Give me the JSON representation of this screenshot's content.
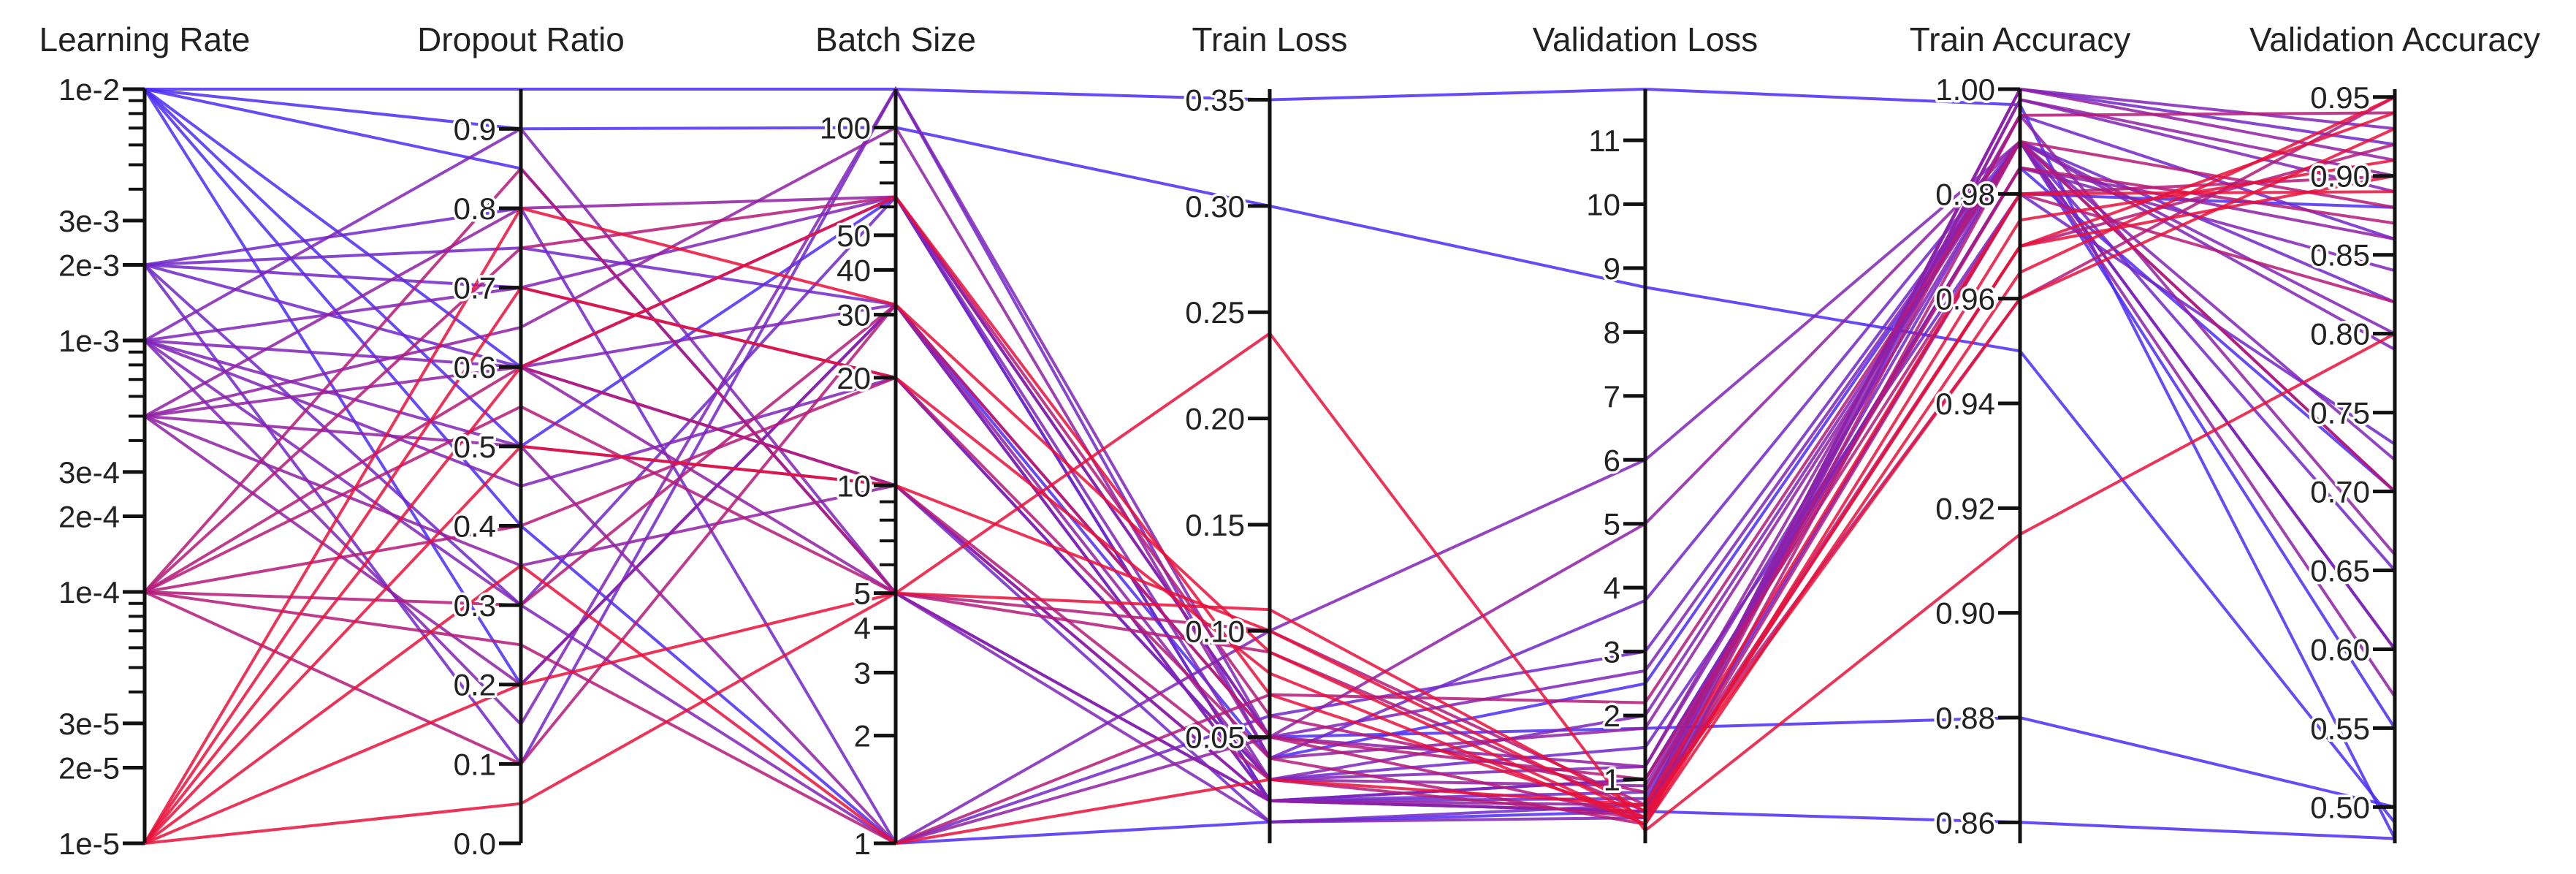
{
  "chart_data": {
    "type": "parallel-coordinates",
    "color_low": "#e8113a",
    "color_high": "#4b2cf5",
    "axes": [
      {
        "key": "lr",
        "title": "Learning Rate",
        "scale": "log",
        "domain": [
          1e-05,
          0.01
        ],
        "ticks": [
          {
            "v": 0.01,
            "label": "1e-2"
          },
          {
            "v": 0.003,
            "label": "3e-3"
          },
          {
            "v": 0.002,
            "label": "2e-3"
          },
          {
            "v": 0.001,
            "label": "1e-3"
          },
          {
            "v": 0.0003,
            "label": "3e-4"
          },
          {
            "v": 0.0002,
            "label": "2e-4"
          },
          {
            "v": 0.0001,
            "label": "1e-4"
          },
          {
            "v": 3e-05,
            "label": "3e-5"
          },
          {
            "v": 2e-05,
            "label": "2e-5"
          },
          {
            "v": 1e-05,
            "label": "1e-5"
          }
        ]
      },
      {
        "key": "dropout",
        "title": "Dropout Ratio",
        "scale": "linear",
        "domain": [
          0,
          0.95
        ],
        "ticks": [
          {
            "v": 0.9,
            "label": "0.9"
          },
          {
            "v": 0.8,
            "label": "0.8"
          },
          {
            "v": 0.7,
            "label": "0.7"
          },
          {
            "v": 0.6,
            "label": "0.6"
          },
          {
            "v": 0.5,
            "label": "0.5"
          },
          {
            "v": 0.4,
            "label": "0.4"
          },
          {
            "v": 0.3,
            "label": "0.3"
          },
          {
            "v": 0.2,
            "label": "0.2"
          },
          {
            "v": 0.1,
            "label": "0.1"
          },
          {
            "v": 0,
            "label": "0.0"
          }
        ]
      },
      {
        "key": "batch",
        "title": "Batch Size",
        "scale": "log",
        "domain": [
          1,
          128
        ],
        "ticks": [
          {
            "v": 100,
            "label": "100"
          },
          {
            "v": 50,
            "label": "50"
          },
          {
            "v": 40,
            "label": "40"
          },
          {
            "v": 30,
            "label": "30"
          },
          {
            "v": 20,
            "label": "20"
          },
          {
            "v": 10,
            "label": "10"
          },
          {
            "v": 5,
            "label": "5"
          },
          {
            "v": 4,
            "label": "4"
          },
          {
            "v": 3,
            "label": "3"
          },
          {
            "v": 2,
            "label": "2"
          },
          {
            "v": 1,
            "label": "1"
          }
        ]
      },
      {
        "key": "train_loss",
        "title": "Train Loss",
        "scale": "linear",
        "domain": [
          0,
          0.355
        ],
        "ticks": [
          {
            "v": 0.35,
            "label": "0.35"
          },
          {
            "v": 0.3,
            "label": "0.30"
          },
          {
            "v": 0.25,
            "label": "0.25"
          },
          {
            "v": 0.2,
            "label": "0.20"
          },
          {
            "v": 0.15,
            "label": "0.15"
          },
          {
            "v": 0.1,
            "label": "0.10"
          },
          {
            "v": 0.05,
            "label": "0.05"
          }
        ]
      },
      {
        "key": "val_loss",
        "title": "Validation Loss",
        "scale": "linear",
        "domain": [
          0,
          11.8
        ],
        "ticks": [
          {
            "v": 11,
            "label": "11"
          },
          {
            "v": 10,
            "label": "10"
          },
          {
            "v": 9,
            "label": "9"
          },
          {
            "v": 8,
            "label": "8"
          },
          {
            "v": 7,
            "label": "7"
          },
          {
            "v": 6,
            "label": "6"
          },
          {
            "v": 5,
            "label": "5"
          },
          {
            "v": 4,
            "label": "4"
          },
          {
            "v": 3,
            "label": "3"
          },
          {
            "v": 2,
            "label": "2"
          },
          {
            "v": 1,
            "label": "1"
          }
        ]
      },
      {
        "key": "train_acc",
        "title": "Train Accuracy",
        "scale": "linear",
        "domain": [
          0.856,
          1.0
        ],
        "ticks": [
          {
            "v": 1.0,
            "label": "1.00"
          },
          {
            "v": 0.98,
            "label": "0.98"
          },
          {
            "v": 0.96,
            "label": "0.96"
          },
          {
            "v": 0.94,
            "label": "0.94"
          },
          {
            "v": 0.92,
            "label": "0.92"
          },
          {
            "v": 0.9,
            "label": "0.90"
          },
          {
            "v": 0.88,
            "label": "0.88"
          },
          {
            "v": 0.86,
            "label": "0.86"
          }
        ]
      },
      {
        "key": "val_acc",
        "title": "Validation Accuracy",
        "scale": "linear",
        "domain": [
          0.477,
          0.955
        ],
        "ticks": [
          {
            "v": 0.95,
            "label": "0.95"
          },
          {
            "v": 0.9,
            "label": "0.90"
          },
          {
            "v": 0.85,
            "label": "0.85"
          },
          {
            "v": 0.8,
            "label": "0.80"
          },
          {
            "v": 0.75,
            "label": "0.75"
          },
          {
            "v": 0.7,
            "label": "0.70"
          },
          {
            "v": 0.65,
            "label": "0.65"
          },
          {
            "v": 0.6,
            "label": "0.60"
          },
          {
            "v": 0.55,
            "label": "0.55"
          },
          {
            "v": 0.5,
            "label": "0.50"
          }
        ]
      }
    ],
    "runs": [
      [
        0.01,
        0.95,
        128,
        0.35,
        11.8,
        0.997,
        0.48
      ],
      [
        0.01,
        0.9,
        100,
        0.3,
        8.7,
        0.95,
        0.49
      ],
      [
        0.01,
        0.6,
        64,
        0.05,
        1.8,
        0.88,
        0.5
      ],
      [
        0.01,
        0.4,
        1,
        0.01,
        0.5,
        0.86,
        0.48
      ],
      [
        0.01,
        0.2,
        32,
        0.04,
        2.5,
        0.99,
        0.55
      ],
      [
        0.01,
        0.85,
        5,
        0.02,
        0.5,
        0.98,
        0.88
      ],
      [
        0.01,
        0.5,
        64,
        0.02,
        1.0,
        0.985,
        0.7
      ],
      [
        0.002,
        0.8,
        1,
        0.06,
        3.0,
        0.99,
        0.6
      ],
      [
        0.002,
        0.6,
        10,
        0.01,
        0.6,
        1.0,
        0.92
      ],
      [
        0.002,
        0.3,
        64,
        0.02,
        0.8,
        0.99,
        0.82
      ],
      [
        0.002,
        0.7,
        20,
        0.03,
        1.5,
        0.98,
        0.73
      ],
      [
        0.002,
        0.1,
        128,
        0.04,
        3.8,
        0.99,
        0.65
      ],
      [
        0.002,
        0.75,
        32,
        0.02,
        0.7,
        0.995,
        0.86
      ],
      [
        0.001,
        0.7,
        64,
        0.03,
        2.0,
        0.99,
        0.8
      ],
      [
        0.001,
        0.5,
        10,
        0.02,
        0.5,
        1.0,
        0.93
      ],
      [
        0.001,
        0.3,
        1,
        0.1,
        6.0,
        0.99,
        0.6
      ],
      [
        0.001,
        0.9,
        5,
        0.01,
        0.4,
        0.998,
        0.89
      ],
      [
        0.001,
        0.6,
        32,
        0.02,
        1.0,
        0.985,
        0.84
      ],
      [
        0.001,
        0.15,
        128,
        0.05,
        2.7,
        0.99,
        0.72
      ],
      [
        0.001,
        0.45,
        20,
        0.03,
        1.2,
        0.99,
        0.79
      ],
      [
        0.0005,
        0.6,
        5,
        0.02,
        0.6,
        1.0,
        0.91
      ],
      [
        0.0005,
        0.8,
        64,
        0.05,
        1.2,
        0.995,
        0.66
      ],
      [
        0.0005,
        0.2,
        32,
        0.03,
        0.9,
        0.985,
        0.86
      ],
      [
        0.0005,
        0.5,
        1,
        0.05,
        5.0,
        0.99,
        0.57
      ],
      [
        0.0005,
        0.35,
        10,
        0.02,
        0.5,
        0.998,
        0.9
      ],
      [
        0.0005,
        0.65,
        100,
        0.04,
        1.8,
        0.99,
        0.7
      ],
      [
        0.0001,
        0.85,
        5,
        0.09,
        0.5,
        0.97,
        0.92
      ],
      [
        0.0001,
        0.4,
        20,
        0.04,
        0.3,
        0.99,
        0.88
      ],
      [
        0.0001,
        0.1,
        32,
        0.05,
        1.0,
        0.98,
        0.82
      ],
      [
        0.0001,
        0.6,
        10,
        0.03,
        0.4,
        0.995,
        0.94
      ],
      [
        0.0001,
        0.75,
        64,
        0.06,
        0.8,
        0.985,
        0.87
      ],
      [
        0.0001,
        0.25,
        1,
        0.07,
        2.2,
        0.99,
        0.7
      ],
      [
        0.0001,
        0.55,
        5,
        0.1,
        0.6,
        0.96,
        0.95
      ],
      [
        0.0001,
        0.3,
        32,
        0.05,
        0.4,
        0.98,
        0.9
      ],
      [
        1e-05,
        0.05,
        5,
        0.24,
        0.2,
        0.915,
        0.8
      ],
      [
        1e-05,
        0.5,
        10,
        0.1,
        0.4,
        0.97,
        0.94
      ],
      [
        1e-05,
        0.7,
        20,
        0.08,
        0.3,
        0.965,
        0.95
      ],
      [
        1e-05,
        0.2,
        5,
        0.11,
        0.5,
        0.96,
        0.93
      ],
      [
        1e-05,
        0.8,
        32,
        0.09,
        0.3,
        0.975,
        0.91
      ],
      [
        1e-05,
        0.35,
        1,
        0.03,
        0.6,
        0.98,
        0.89
      ],
      [
        1e-05,
        0.6,
        64,
        0.07,
        0.4,
        0.97,
        0.9
      ]
    ]
  }
}
